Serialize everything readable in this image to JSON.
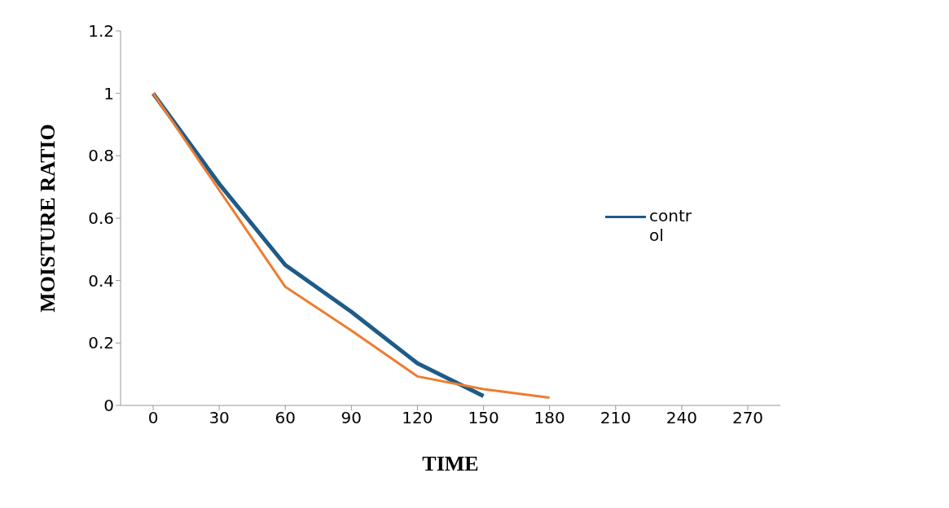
{
  "chart_data": {
    "type": "line",
    "xlabel": "TIME",
    "ylabel": "MOISTURE RATIO",
    "categories": [
      "0",
      "30",
      "60",
      "90",
      "120",
      "150",
      "180",
      "210",
      "240",
      "270"
    ],
    "series": [
      {
        "name": "control",
        "color": "#1f5b87",
        "values": [
          1.0,
          0.71,
          0.45,
          0.3,
          0.135,
          0.03,
          null,
          null,
          null,
          null
        ]
      },
      {
        "color": "#ed7d31",
        "values": [
          1.0,
          0.69,
          0.38,
          0.24,
          0.093,
          0.052,
          0.025,
          null,
          null,
          null
        ]
      }
    ],
    "ylim": [
      0,
      1.2
    ],
    "yticks": [
      0,
      0.2,
      0.4,
      0.6,
      0.8,
      1,
      1.2
    ],
    "grid": false,
    "legend": "right",
    "marker": "none",
    "line_style": "solid"
  }
}
